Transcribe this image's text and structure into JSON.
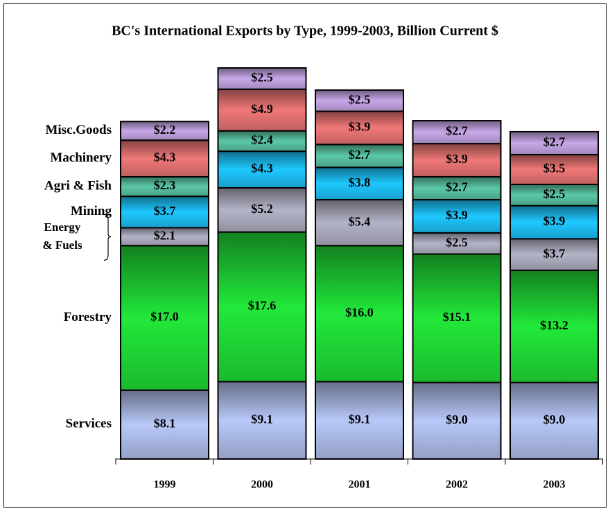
{
  "chart_data": {
    "type": "stacked_bar",
    "title": "BC's International Exports by Type, 1999-2003, Billion Current $",
    "categories": [
      "1999",
      "2000",
      "2001",
      "2002",
      "2003"
    ],
    "series": [
      {
        "name": "Services",
        "color": "#b8c8f8",
        "values": [
          8.1,
          9.1,
          9.1,
          9.0,
          9.0
        ],
        "value_labels": [
          "$8.1",
          "$9.1",
          "$9.1",
          "$9.0",
          "$9.0"
        ]
      },
      {
        "name": "Forestry",
        "color": "#22e83a",
        "values": [
          17.0,
          17.6,
          16.0,
          15.1,
          13.2
        ],
        "value_labels": [
          "$17.0",
          "$17.6",
          "$16.0",
          "$15.1",
          "$13.2"
        ]
      },
      {
        "name": "Energy & Fuels",
        "color": "#b4b4c8",
        "values": [
          2.1,
          5.2,
          5.4,
          2.5,
          3.7
        ],
        "value_labels": [
          "$2.1",
          "$5.2",
          "$5.4",
          "$2.5",
          "$3.7"
        ]
      },
      {
        "name": "Mining",
        "color": "#1ec8ff",
        "values": [
          3.7,
          4.3,
          3.8,
          3.9,
          3.9
        ],
        "value_labels": [
          "$3.7",
          "$4.3",
          "$3.8",
          "$3.9",
          "$3.9"
        ]
      },
      {
        "name": "Agri & Fish",
        "color": "#5cc8a8",
        "values": [
          2.3,
          2.4,
          2.7,
          2.7,
          2.5
        ],
        "value_labels": [
          "$2.3",
          "$2.4",
          "$2.7",
          "$2.7",
          "$2.5"
        ]
      },
      {
        "name": "Machinery",
        "color": "#f07878",
        "values": [
          4.3,
          4.9,
          3.9,
          3.9,
          3.5
        ],
        "value_labels": [
          "$4.3",
          "$4.9",
          "$3.9",
          "$3.9",
          "$3.5"
        ]
      },
      {
        "name": "Misc.Goods",
        "color": "#c8a8e8",
        "values": [
          2.2,
          2.5,
          2.5,
          2.7,
          2.7
        ],
        "value_labels": [
          "$2.2",
          "$2.5",
          "$2.5",
          "$2.7",
          "$2.7"
        ]
      }
    ]
  }
}
